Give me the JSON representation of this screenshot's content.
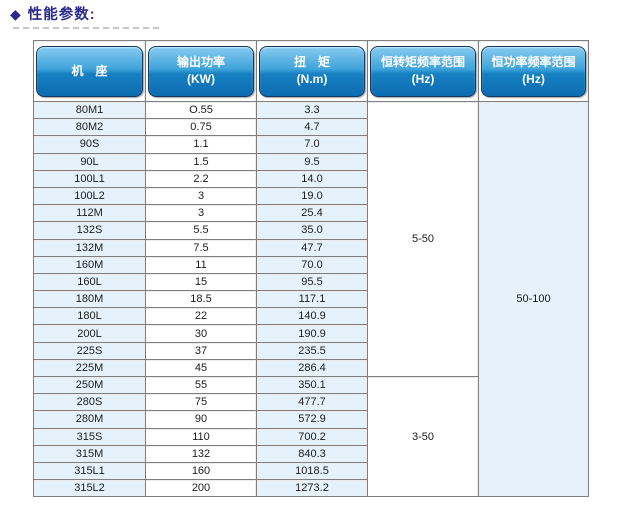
{
  "title": {
    "diamond_icon": "◆",
    "text": "性能参数:"
  },
  "colors": {
    "title_navy": "#2a2a8e",
    "header_gradient_top": "#85cbf0",
    "header_gradient_bottom": "#0d6db1",
    "header_border": "#17395c",
    "cell_light_blue": "#e5f2fb",
    "grid_line": "#7f7f7f"
  },
  "table": {
    "columns": [
      {
        "id": "frame",
        "lines": [
          "机　座"
        ]
      },
      {
        "id": "power",
        "lines": [
          "输出功率",
          "(KW)"
        ]
      },
      {
        "id": "torque",
        "lines": [
          "扭　矩",
          "(N.m)"
        ]
      },
      {
        "id": "const-torque-range",
        "lines": [
          "恒转矩频率范围",
          "(Hz)"
        ]
      },
      {
        "id": "const-power-range",
        "lines": [
          "恒功率频率范围",
          "(Hz)"
        ]
      }
    ],
    "rows": [
      {
        "frame": "80M1",
        "power": "O.55",
        "torque": "3.3"
      },
      {
        "frame": "80M2",
        "power": "0.75",
        "torque": "4.7"
      },
      {
        "frame": "90S",
        "power": "1.1",
        "torque": "7.0"
      },
      {
        "frame": "90L",
        "power": "1.5",
        "torque": "9.5"
      },
      {
        "frame": "100L1",
        "power": "2.2",
        "torque": "14.0"
      },
      {
        "frame": "100L2",
        "power": "3",
        "torque": "19.0"
      },
      {
        "frame": "112M",
        "power": "3",
        "torque": "25.4"
      },
      {
        "frame": "132S",
        "power": "5.5",
        "torque": "35.0"
      },
      {
        "frame": "132M",
        "power": "7.5",
        "torque": "47.7"
      },
      {
        "frame": "160M",
        "power": "11",
        "torque": "70.0"
      },
      {
        "frame": "160L",
        "power": "15",
        "torque": "95.5"
      },
      {
        "frame": "180M",
        "power": "18.5",
        "torque": "117.1"
      },
      {
        "frame": "180L",
        "power": "22",
        "torque": "140.9"
      },
      {
        "frame": "200L",
        "power": "30",
        "torque": "190.9"
      },
      {
        "frame": "225S",
        "power": "37",
        "torque": "235.5"
      },
      {
        "frame": "225M",
        "power": "45",
        "torque": "286.4"
      },
      {
        "frame": "250M",
        "power": "55",
        "torque": "350.1"
      },
      {
        "frame": "280S",
        "power": "75",
        "torque": "477.7"
      },
      {
        "frame": "280M",
        "power": "90",
        "torque": "572.9"
      },
      {
        "frame": "315S",
        "power": "110",
        "torque": "700.2"
      },
      {
        "frame": "315M",
        "power": "132",
        "torque": "840.3"
      },
      {
        "frame": "315L1",
        "power": "160",
        "torque": "1018.5"
      },
      {
        "frame": "315L2",
        "power": "200",
        "torque": "1273.2"
      }
    ],
    "merged": {
      "constant_torque": [
        {
          "value": "5-50",
          "rowspan": 16
        },
        {
          "value": "3-50",
          "rowspan": 7
        }
      ],
      "constant_power": [
        {
          "value": "50-100",
          "rowspan": 23
        }
      ]
    }
  }
}
